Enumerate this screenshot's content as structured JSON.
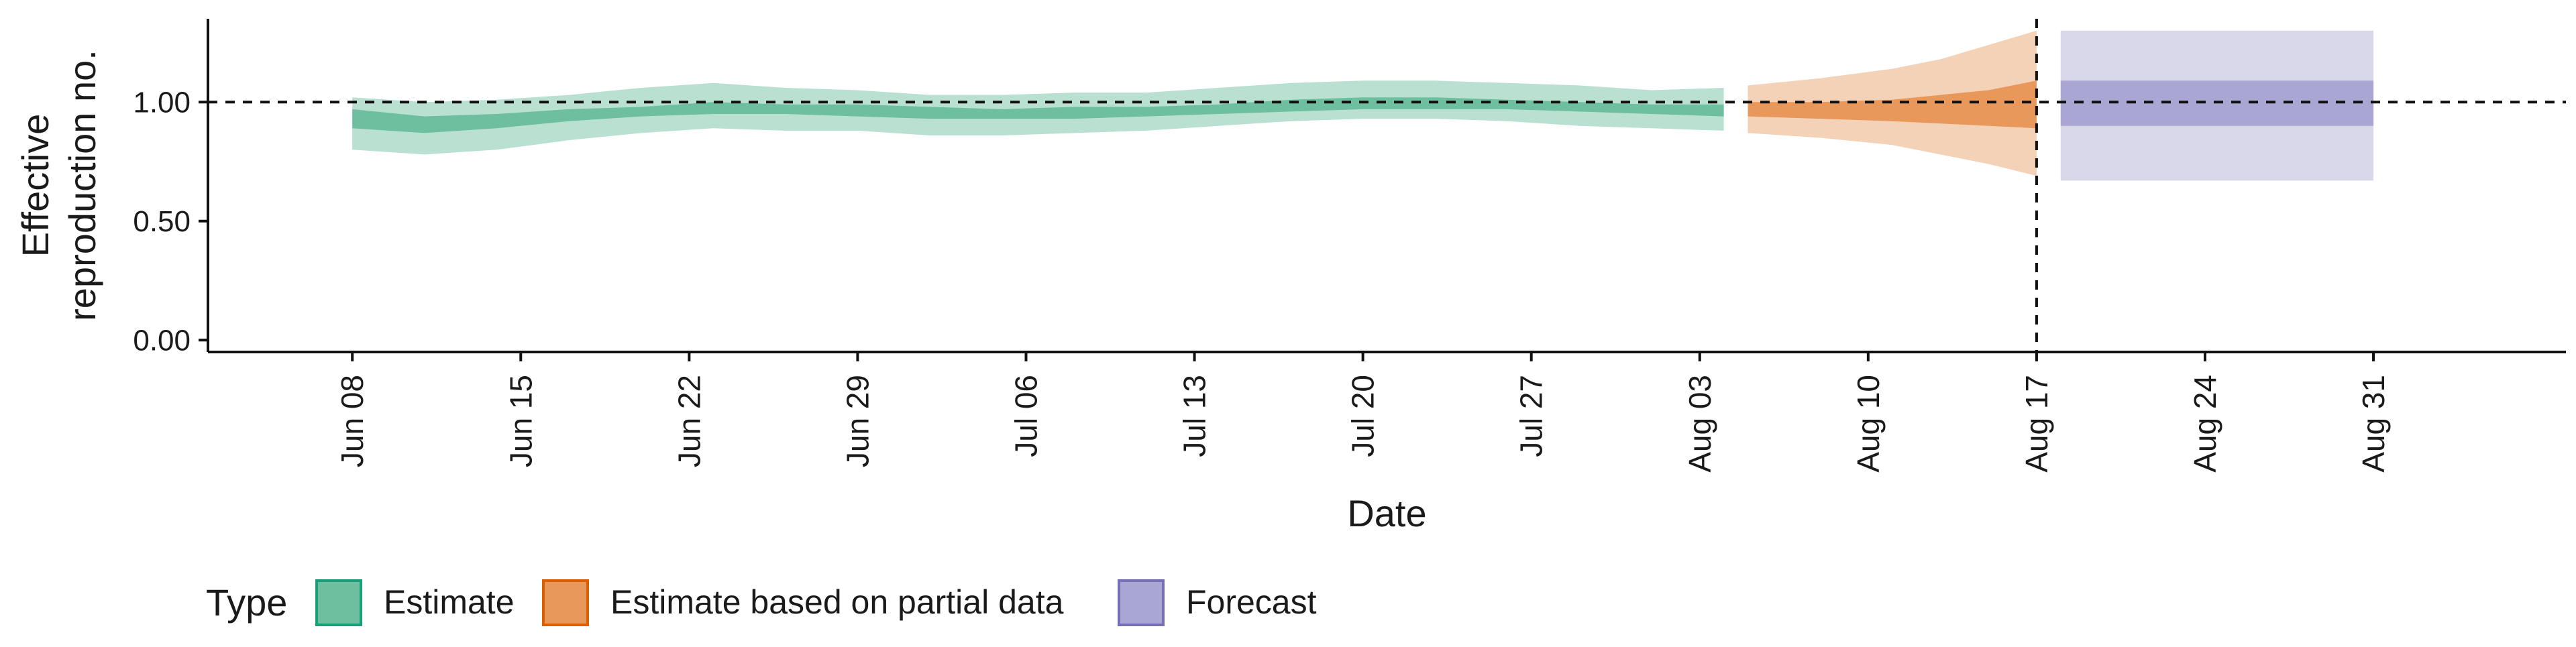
{
  "chart_data": {
    "type": "area",
    "xlabel": "Date",
    "ylabel_lines": [
      "Effective",
      "reproduction no."
    ],
    "x_range": [
      "2020-06-02",
      "2020-09-08"
    ],
    "y_range": [
      -0.05,
      1.35
    ],
    "y_ticks": [
      0.0,
      0.5,
      1.0
    ],
    "y_tick_labels": [
      "0.00",
      "0.50",
      "1.00"
    ],
    "x_ticks": [
      "2020-06-08",
      "2020-06-15",
      "2020-06-22",
      "2020-06-29",
      "2020-07-06",
      "2020-07-13",
      "2020-07-20",
      "2020-07-27",
      "2020-08-03",
      "2020-08-10",
      "2020-08-17",
      "2020-08-24",
      "2020-08-31"
    ],
    "x_tick_labels": [
      "Jun 08",
      "Jun 15",
      "Jun 22",
      "Jun 29",
      "Jul 06",
      "Jul 13",
      "Jul 20",
      "Jul 27",
      "Aug 03",
      "Aug 10",
      "Aug 17",
      "Aug 24",
      "Aug 31"
    ],
    "reference_hline": 1.0,
    "reference_vline": "2020-08-17",
    "legend": {
      "title": "Type",
      "position": "bottom",
      "items": [
        {
          "label": "Estimate",
          "color": "#6dbf9f",
          "border": "#1b9e77"
        },
        {
          "label": "Estimate based on partial data",
          "color": "#e8985a",
          "border": "#d95f02"
        },
        {
          "label": "Forecast",
          "color": "#a9a6d3",
          "border": "#7570b3"
        }
      ]
    },
    "series": [
      {
        "name": "Estimate",
        "outer_color": "#b9e0d1",
        "inner_color": "#6dbf9f",
        "points": [
          {
            "date": "2020-06-08",
            "lo90": 0.8,
            "lo50": 0.89,
            "hi50": 0.97,
            "hi90": 1.02
          },
          {
            "date": "2020-06-11",
            "lo90": 0.78,
            "lo50": 0.87,
            "hi50": 0.94,
            "hi90": 1.0
          },
          {
            "date": "2020-06-14",
            "lo90": 0.8,
            "lo50": 0.89,
            "hi50": 0.95,
            "hi90": 1.01
          },
          {
            "date": "2020-06-17",
            "lo90": 0.84,
            "lo50": 0.92,
            "hi50": 0.97,
            "hi90": 1.03
          },
          {
            "date": "2020-06-20",
            "lo90": 0.87,
            "lo50": 0.94,
            "hi50": 0.98,
            "hi90": 1.06
          },
          {
            "date": "2020-06-23",
            "lo90": 0.89,
            "lo50": 0.95,
            "hi50": 1.0,
            "hi90": 1.08
          },
          {
            "date": "2020-06-26",
            "lo90": 0.88,
            "lo50": 0.95,
            "hi50": 0.99,
            "hi90": 1.06
          },
          {
            "date": "2020-06-29",
            "lo90": 0.88,
            "lo50": 0.94,
            "hi50": 0.99,
            "hi90": 1.05
          },
          {
            "date": "2020-07-02",
            "lo90": 0.86,
            "lo50": 0.93,
            "hi50": 0.98,
            "hi90": 1.03
          },
          {
            "date": "2020-07-05",
            "lo90": 0.86,
            "lo50": 0.93,
            "hi50": 0.97,
            "hi90": 1.03
          },
          {
            "date": "2020-07-08",
            "lo90": 0.87,
            "lo50": 0.93,
            "hi50": 0.98,
            "hi90": 1.04
          },
          {
            "date": "2020-07-11",
            "lo90": 0.88,
            "lo50": 0.94,
            "hi50": 0.98,
            "hi90": 1.04
          },
          {
            "date": "2020-07-14",
            "lo90": 0.9,
            "lo50": 0.95,
            "hi50": 0.99,
            "hi90": 1.06
          },
          {
            "date": "2020-07-17",
            "lo90": 0.92,
            "lo50": 0.96,
            "hi50": 1.01,
            "hi90": 1.08
          },
          {
            "date": "2020-07-20",
            "lo90": 0.93,
            "lo50": 0.97,
            "hi50": 1.02,
            "hi90": 1.09
          },
          {
            "date": "2020-07-23",
            "lo90": 0.93,
            "lo50": 0.97,
            "hi50": 1.02,
            "hi90": 1.09
          },
          {
            "date": "2020-07-26",
            "lo90": 0.92,
            "lo50": 0.97,
            "hi50": 1.01,
            "hi90": 1.08
          },
          {
            "date": "2020-07-29",
            "lo90": 0.9,
            "lo50": 0.96,
            "hi50": 1.0,
            "hi90": 1.07
          },
          {
            "date": "2020-08-01",
            "lo90": 0.89,
            "lo50": 0.95,
            "hi50": 0.99,
            "hi90": 1.05
          },
          {
            "date": "2020-08-04",
            "lo90": 0.88,
            "lo50": 0.94,
            "hi50": 0.99,
            "hi90": 1.06
          }
        ]
      },
      {
        "name": "Estimate based on partial data",
        "outer_color": "#f4d2b8",
        "inner_color": "#e8985a",
        "points": [
          {
            "date": "2020-08-05",
            "lo90": 0.87,
            "lo50": 0.94,
            "hi50": 1.0,
            "hi90": 1.07
          },
          {
            "date": "2020-08-08",
            "lo90": 0.85,
            "lo50": 0.93,
            "hi50": 1.0,
            "hi90": 1.1
          },
          {
            "date": "2020-08-11",
            "lo90": 0.82,
            "lo50": 0.92,
            "hi50": 1.01,
            "hi90": 1.14
          },
          {
            "date": "2020-08-13",
            "lo90": 0.78,
            "lo50": 0.91,
            "hi50": 1.03,
            "hi90": 1.18
          },
          {
            "date": "2020-08-15",
            "lo90": 0.74,
            "lo50": 0.9,
            "hi50": 1.05,
            "hi90": 1.24
          },
          {
            "date": "2020-08-17",
            "lo90": 0.69,
            "lo50": 0.89,
            "hi50": 1.09,
            "hi90": 1.3
          }
        ]
      },
      {
        "name": "Forecast",
        "outer_color": "#d9d8ea",
        "inner_color": "#a9a6d3",
        "points": [
          {
            "date": "2020-08-18",
            "lo90": 0.67,
            "lo50": 0.9,
            "hi50": 1.09,
            "hi90": 1.3
          },
          {
            "date": "2020-08-31",
            "lo90": 0.67,
            "lo50": 0.9,
            "hi50": 1.09,
            "hi90": 1.3
          }
        ]
      }
    ]
  }
}
